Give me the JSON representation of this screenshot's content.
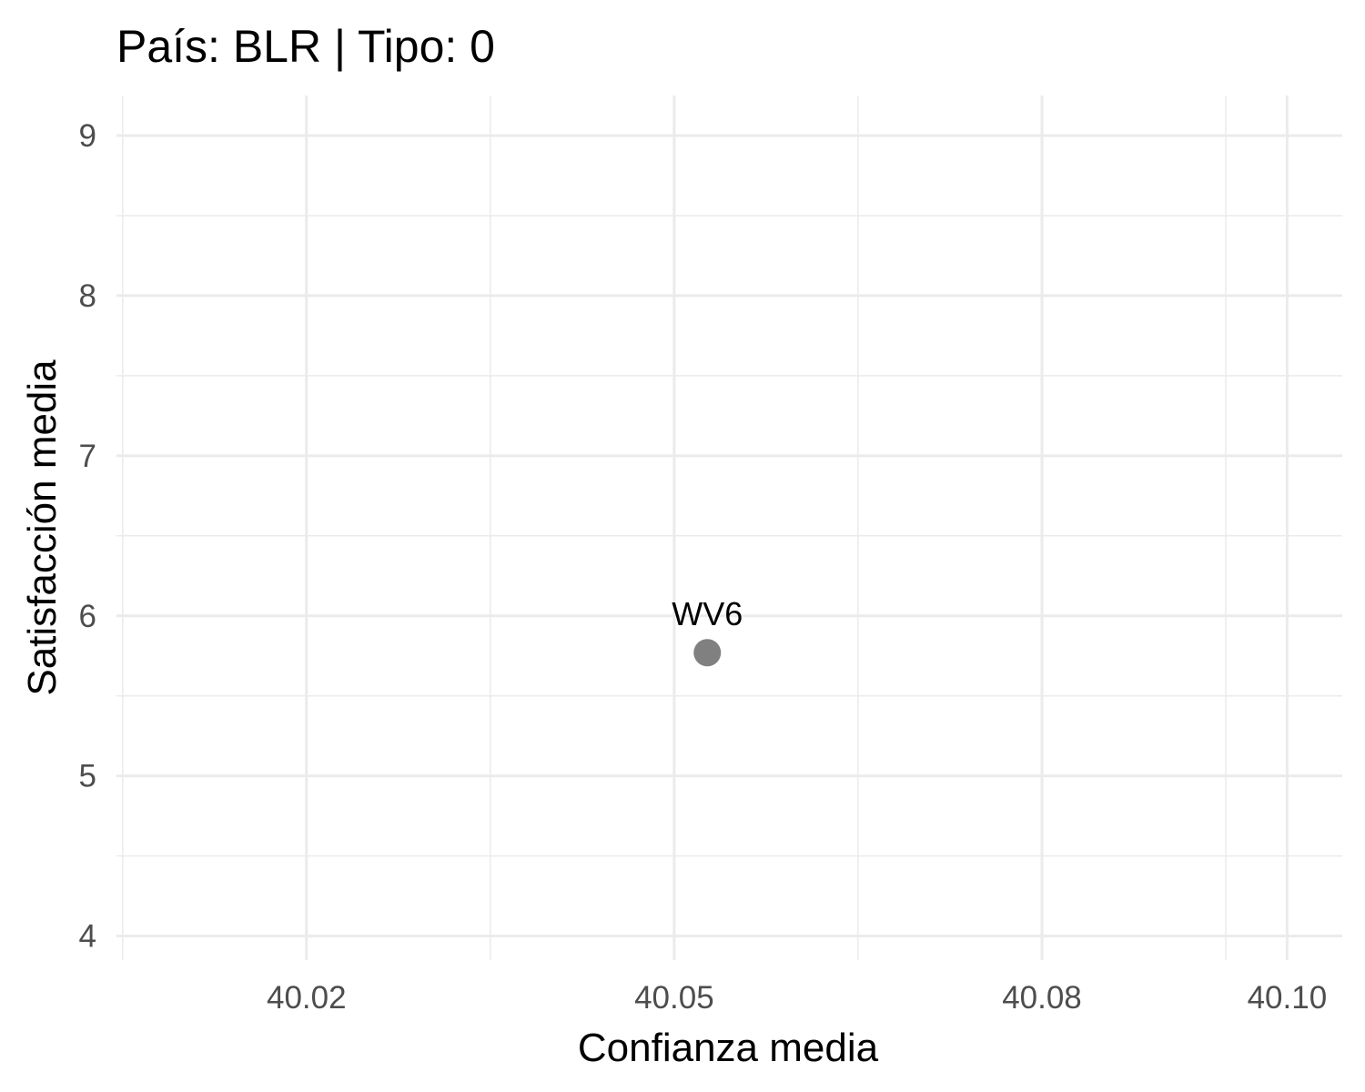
{
  "chart_data": {
    "type": "scatter",
    "title": "País: BLR | Tipo: 0",
    "xlabel": "Confianza media",
    "ylabel": "Satisfacción media",
    "xlim": [
      40.0045,
      40.1045
    ],
    "ylim": [
      3.85,
      9.25
    ],
    "x_ticks": [
      40.02,
      40.05,
      40.08,
      40.1
    ],
    "x_tick_labels": [
      "40.02",
      "40.05",
      "40.08",
      "40.10"
    ],
    "x_minor_ticks": [
      40.005,
      40.035,
      40.065,
      40.095
    ],
    "y_ticks": [
      4,
      5,
      6,
      7,
      8,
      9
    ],
    "y_tick_labels": [
      "4",
      "5",
      "6",
      "7",
      "8",
      "9"
    ],
    "y_minor_ticks": [
      4.5,
      5.5,
      6.5,
      7.5,
      8.5
    ],
    "grid": true,
    "legend": "none",
    "point_color": "#808080",
    "points": [
      {
        "x": 40.0527,
        "y": 5.77,
        "label": "WV6"
      }
    ]
  }
}
